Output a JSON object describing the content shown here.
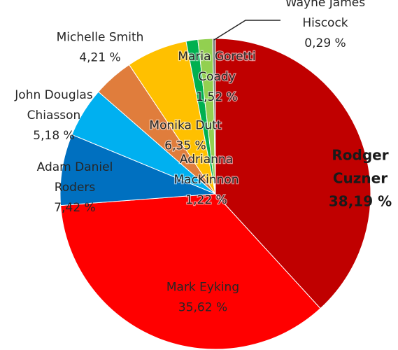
{
  "chart_data": {
    "type": "pie",
    "title": "",
    "slices": [
      {
        "name_lines": [
          "Rodger",
          "Cuzner"
        ],
        "value": 38.19,
        "value_label": "38,19 %",
        "color": "#C00000",
        "emphasis": true
      },
      {
        "name_lines": [
          "Mark Eyking"
        ],
        "value": 35.62,
        "value_label": "35,62 %",
        "color": "#FF0000"
      },
      {
        "name_lines": [
          "Adam Daniel",
          "Roders"
        ],
        "value": 7.42,
        "value_label": "7,42 %",
        "color": "#0070C0"
      },
      {
        "name_lines": [
          "John Douglas",
          "Chiasson"
        ],
        "value": 5.18,
        "value_label": "5,18 %",
        "color": "#00B0F0"
      },
      {
        "name_lines": [
          "Michelle Smith"
        ],
        "value": 4.21,
        "value_label": "4,21 %",
        "color": "#E07D3C"
      },
      {
        "name_lines": [
          "Monika Dutt"
        ],
        "value": 6.35,
        "value_label": "6,35 %",
        "color": "#FFC000"
      },
      {
        "name_lines": [
          "Adrianna",
          "MacKinnon"
        ],
        "value": 1.22,
        "value_label": "1,22 %",
        "color": "#00B050"
      },
      {
        "name_lines": [
          "Maria Goretti",
          "Coady"
        ],
        "value": 1.52,
        "value_label": "1,52 %",
        "color": "#92D050"
      },
      {
        "name_lines": [
          "Wayne James",
          "Hiscock"
        ],
        "value": 0.29,
        "value_label": "0,29 %",
        "color": "#7F7F7F"
      }
    ],
    "legend": "none",
    "start_angle": "12 o'clock",
    "direction": "clockwise from the top, largest slice first on the right"
  }
}
